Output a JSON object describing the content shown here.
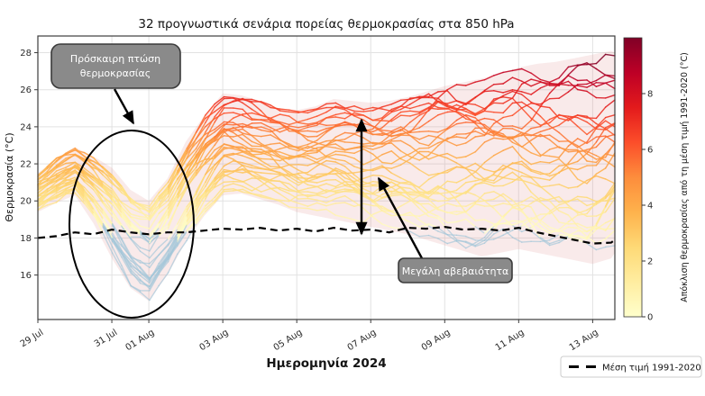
{
  "chart_data": {
    "type": "line",
    "title": "32 προγνωστικά σενάρια πορείας θερμοκρασίας στα 850 hPa",
    "xlabel": "Ημερομηνία 2024",
    "ylabel": "Θερμοκρασία (°C)",
    "n_members": 32,
    "grid": true,
    "x": {
      "unit": "days since 29 Jul 2024",
      "min": 0,
      "max": 15.6,
      "ticks": [
        {
          "d": 0,
          "label": "29 Jul"
        },
        {
          "d": 2,
          "label": "31 Jul"
        },
        {
          "d": 3,
          "label": "01 Aug"
        },
        {
          "d": 5,
          "label": "03 Aug"
        },
        {
          "d": 7,
          "label": "05 Aug"
        },
        {
          "d": 9,
          "label": "07 Aug"
        },
        {
          "d": 11,
          "label": "09 Aug"
        },
        {
          "d": 13,
          "label": "11 Aug"
        },
        {
          "d": 15,
          "label": "13 Aug"
        }
      ]
    },
    "y": {
      "min": 13.6,
      "max": 28.9,
      "ticks": [
        16,
        18,
        20,
        22,
        24,
        26,
        28
      ]
    },
    "days": [
      0,
      0.5,
      1,
      1.5,
      2,
      2.5,
      3,
      3.5,
      4,
      4.5,
      5,
      5.5,
      6,
      6.5,
      7,
      7.5,
      8,
      8.5,
      9,
      9.5,
      10,
      10.5,
      11,
      11.5,
      12,
      12.5,
      13,
      13.5,
      14,
      14.5,
      15,
      15.5,
      15.6
    ],
    "ensemble_min": [
      19.4,
      19.9,
      20.3,
      18.8,
      16.9,
      15.3,
      14.6,
      16.0,
      17.8,
      19.2,
      20.3,
      20.4,
      20.1,
      19.8,
      19.4,
      19.2,
      19.0,
      18.8,
      18.6,
      18.4,
      18.2,
      17.9,
      17.6,
      17.3,
      17.0,
      17.2,
      17.4,
      17.2,
      17.0,
      16.8,
      16.6,
      16.9,
      17.2
    ],
    "ensemble_max": [
      21.5,
      22.3,
      22.9,
      22.4,
      21.8,
      20.6,
      20.0,
      21.2,
      23.2,
      24.6,
      25.8,
      25.7,
      25.4,
      25.0,
      24.9,
      25.1,
      25.5,
      25.4,
      25.3,
      25.4,
      25.6,
      25.9,
      26.2,
      26.4,
      26.6,
      26.9,
      27.2,
      27.4,
      27.5,
      27.7,
      27.9,
      28.1,
      28.0
    ],
    "climatology_mean": [
      18.0,
      18.1,
      18.3,
      18.2,
      18.45,
      18.3,
      18.2,
      18.3,
      18.3,
      18.4,
      18.5,
      18.45,
      18.55,
      18.4,
      18.5,
      18.35,
      18.55,
      18.4,
      18.45,
      18.3,
      18.55,
      18.5,
      18.6,
      18.45,
      18.5,
      18.4,
      18.55,
      18.3,
      18.1,
      17.9,
      17.7,
      17.75,
      17.9
    ],
    "legend": {
      "label": "Μέση τιμή 1991-2020",
      "position": "lower right"
    },
    "colorbar": {
      "label": "Απόκλιση θερμοκρασίας από τη μέση τιμή 1991-2020 (°C)",
      "ticks": [
        0,
        2,
        4,
        6,
        8
      ],
      "vmin": 0,
      "vmax": 10,
      "stops": [
        "#ffffcc",
        "#ffeda0",
        "#fed976",
        "#feb24c",
        "#fd8d3c",
        "#fc4e2a",
        "#e31a1c",
        "#bd0026",
        "#800026"
      ]
    },
    "colors": {
      "below_mean_line": "#a3c6d8",
      "envelope_fill": "#dd8888",
      "climatology_line": "#000000",
      "grid": "#e2e2e2",
      "spine": "#3c3c3c",
      "text": "#2b2b2b",
      "callout_fill": "#8a8a8a",
      "callout_stroke": "#3b3b3b",
      "callout_text": "#ffffff"
    },
    "annotations": [
      {
        "id": "temp-drop",
        "text": "Πρόσκαιρη πτώση θερμοκρασίας",
        "line1": "Πρόσκαιρη πτώση",
        "line2": "θερμοκρασίας"
      },
      {
        "id": "uncertainty",
        "text": "Μεγάλη αβεβαιότητα"
      }
    ]
  }
}
